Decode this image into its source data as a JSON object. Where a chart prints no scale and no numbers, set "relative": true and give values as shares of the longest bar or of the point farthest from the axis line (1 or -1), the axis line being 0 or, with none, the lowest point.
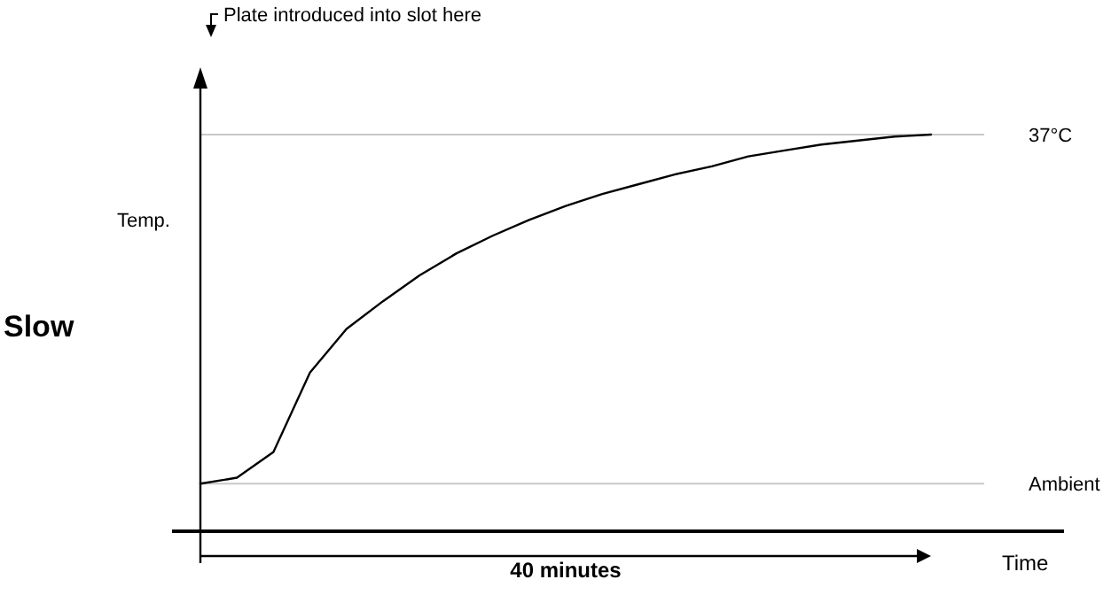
{
  "chart_data": {
    "type": "line",
    "relative": true,
    "xlabel": "Time",
    "ylabel": "Temp.",
    "line_style": "solid",
    "categories": [
      null,
      null,
      null,
      null,
      null,
      null,
      null,
      null,
      null,
      null,
      null,
      null,
      null,
      null,
      null,
      null,
      null,
      null,
      null,
      null,
      null
    ],
    "series": [
      {
        "color": "#000000",
        "values": [
          0.12,
          0.135,
          0.2,
          0.4,
          0.51,
          0.58,
          0.645,
          0.7,
          0.745,
          0.785,
          0.82,
          0.85,
          0.875,
          0.9,
          0.92,
          0.945,
          0.96,
          0.975,
          0.985,
          0.995,
          1
        ]
      }
    ],
    "ref_lines": [
      {
        "axis": "y",
        "value": 1,
        "label": "37°C",
        "color": "#c8c8c8"
      },
      {
        "axis": "y",
        "value": 0.12,
        "label": "Ambient",
        "color": "#c8c8c8"
      }
    ],
    "annotations": [
      "Plate introduced into slot here",
      "40 minutes",
      "Slow"
    ]
  }
}
